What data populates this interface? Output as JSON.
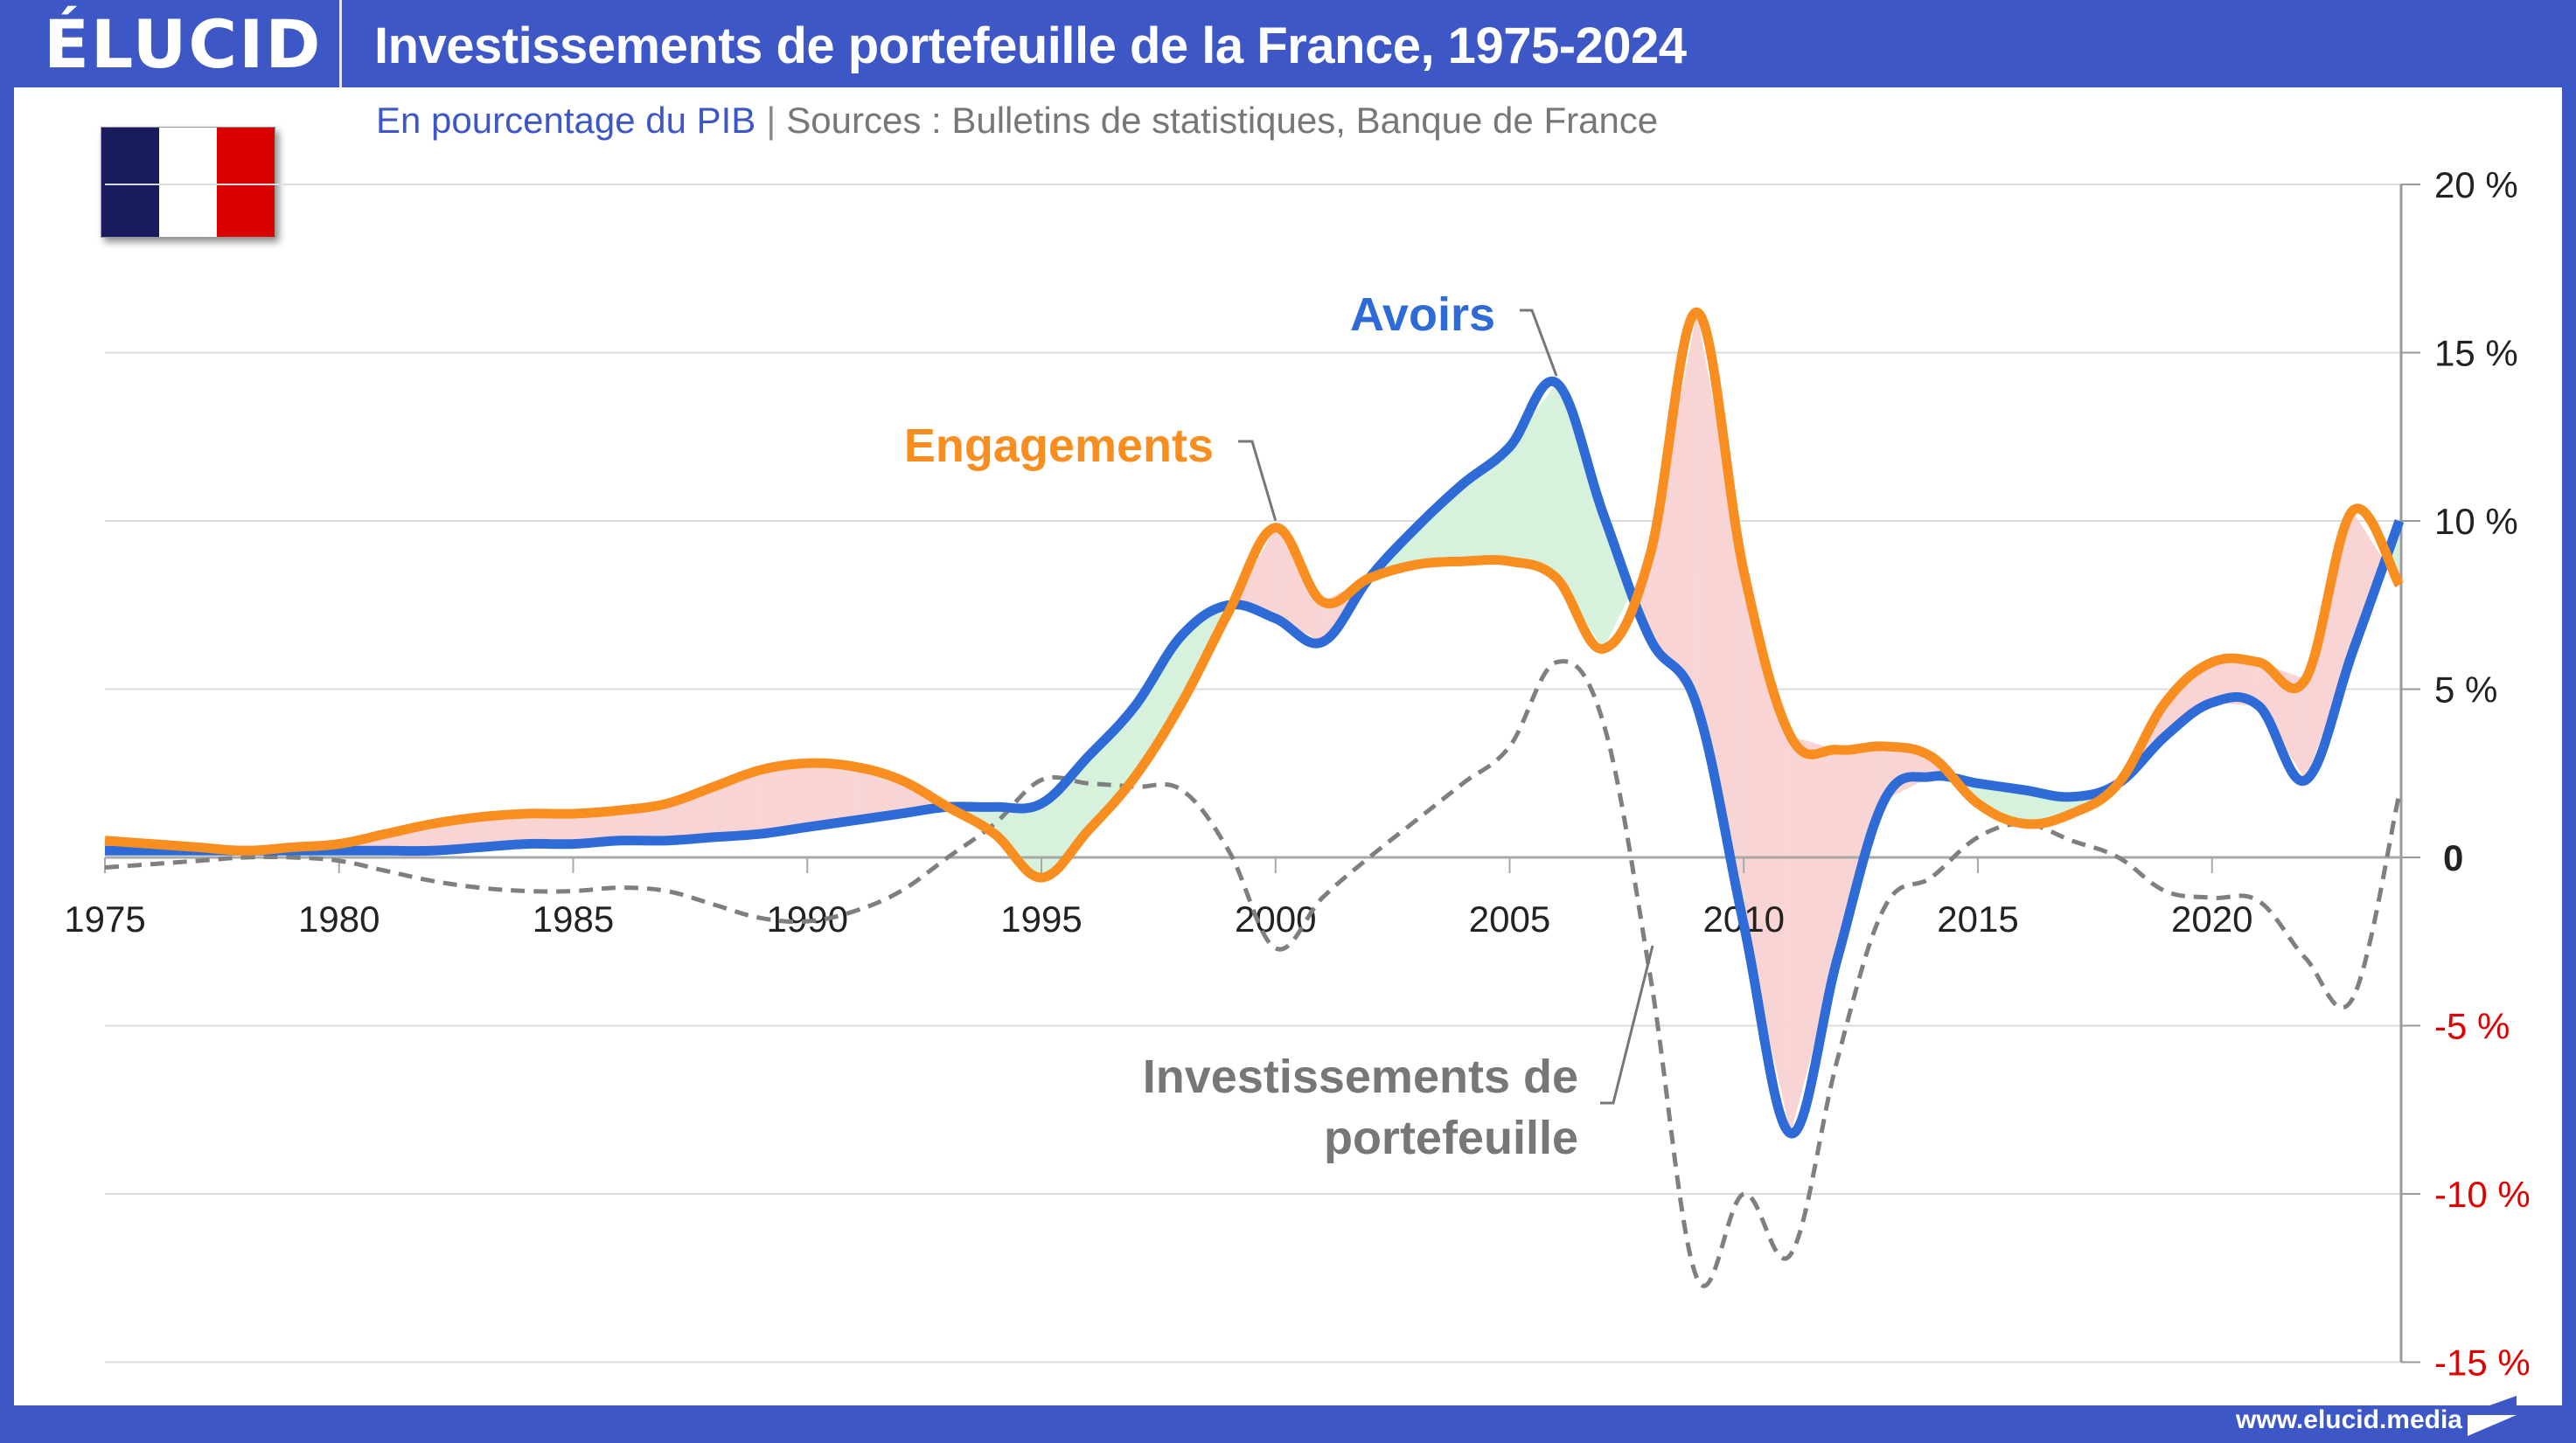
{
  "header": {
    "logo": "ÉLUCID",
    "title": "Investissements de portefeuille de la France, 1975-2024",
    "subtitle_unit": "En pourcentage du PIB",
    "subtitle_separator": "|",
    "subtitle_source": "Sources : Bulletins de statistiques, Banque de France"
  },
  "flag": "France",
  "footer": {
    "url": "www.elucid.media"
  },
  "colors": {
    "brand": "#3e57c6",
    "avoirs": "#2e6bd6",
    "engagements": "#f98e20",
    "net": "#7f7f7f",
    "fill_positive": "#d6f2dc",
    "fill_negative": "#f8d4d4",
    "negative_tick": "#e00000"
  },
  "chart_data": {
    "type": "line",
    "title": "Investissements de portefeuille de la France, 1975-2024",
    "subtitle": "En pourcentage du PIB",
    "xlabel": "",
    "ylabel": "",
    "x_range": [
      1975,
      2024
    ],
    "ylim": [
      -15,
      20
    ],
    "grid": true,
    "y_axis_side": "right",
    "x_ticks": [
      "1975",
      "1980",
      "1985",
      "1990",
      "1995",
      "2000",
      "2005",
      "2010",
      "2015",
      "2020"
    ],
    "x_tick_values": [
      1975,
      1980,
      1985,
      1990,
      1995,
      2000,
      2005,
      2010,
      2015,
      2020
    ],
    "y_ticks": [
      {
        "value": 20,
        "label": "20 %"
      },
      {
        "value": 15,
        "label": "15 %"
      },
      {
        "value": 10,
        "label": "10 %"
      },
      {
        "value": 5,
        "label": "5 %"
      },
      {
        "value": 0,
        "label": "0"
      },
      {
        "value": -5,
        "label": "-5 %"
      },
      {
        "value": -10,
        "label": "-10 %"
      },
      {
        "value": -15,
        "label": "-15 %"
      }
    ],
    "x": [
      1975,
      1976,
      1977,
      1978,
      1979,
      1980,
      1981,
      1982,
      1983,
      1984,
      1985,
      1986,
      1987,
      1988,
      1989,
      1990,
      1991,
      1992,
      1993,
      1994,
      1995,
      1996,
      1997,
      1998,
      1999,
      2000,
      2001,
      2002,
      2003,
      2004,
      2005,
      2006,
      2007,
      2008,
      2009,
      2010,
      2011,
      2012,
      2013,
      2014,
      2015,
      2016,
      2017,
      2018,
      2019,
      2020,
      2021,
      2022,
      2023,
      2024
    ],
    "series": [
      {
        "name": "Avoirs",
        "label": "Avoirs",
        "style": "solid",
        "values": [
          0.2,
          0.2,
          0.2,
          0.2,
          0.2,
          0.2,
          0.2,
          0.2,
          0.3,
          0.4,
          0.4,
          0.5,
          0.5,
          0.6,
          0.7,
          0.9,
          1.1,
          1.3,
          1.5,
          1.5,
          1.6,
          3.0,
          4.5,
          6.6,
          7.5,
          7.1,
          6.4,
          8.3,
          9.8,
          11.1,
          12.2,
          14.1,
          10.2,
          6.5,
          4.5,
          -2.0,
          -8.2,
          -3.0,
          1.7,
          2.4,
          2.2,
          2.0,
          1.8,
          2.2,
          3.6,
          4.6,
          4.5,
          2.3,
          6.1,
          10.0
        ]
      },
      {
        "name": "Engagements",
        "label": "Engagements",
        "style": "solid",
        "values": [
          0.5,
          0.4,
          0.3,
          0.2,
          0.3,
          0.4,
          0.7,
          1.0,
          1.2,
          1.3,
          1.3,
          1.4,
          1.6,
          2.1,
          2.6,
          2.8,
          2.7,
          2.3,
          1.5,
          0.7,
          -0.6,
          0.8,
          2.4,
          4.6,
          7.3,
          9.8,
          7.6,
          8.3,
          8.7,
          8.8,
          8.8,
          8.3,
          6.2,
          9.0,
          16.2,
          8.5,
          3.6,
          3.2,
          3.3,
          3.0,
          1.6,
          1.0,
          1.3,
          2.2,
          4.6,
          5.8,
          5.8,
          5.3,
          10.3,
          8.1
        ]
      },
      {
        "name": "Investissements de portefeuille",
        "label": "Investissements de portefeuille",
        "label_lines": [
          "Investissements de",
          "portefeuille"
        ],
        "style": "dashed",
        "values": [
          -0.3,
          -0.2,
          -0.1,
          0.0,
          0.0,
          -0.1,
          -0.4,
          -0.7,
          -0.9,
          -1.0,
          -1.0,
          -0.9,
          -1.0,
          -1.4,
          -1.8,
          -1.9,
          -1.6,
          -1.0,
          0.0,
          1.0,
          2.3,
          2.2,
          2.1,
          2.0,
          0.2,
          -2.7,
          -1.2,
          0.0,
          1.1,
          2.2,
          3.3,
          5.8,
          4.0,
          -3.5,
          -12.5,
          -10.0,
          -11.8,
          -6.0,
          -1.5,
          -0.6,
          0.6,
          1.0,
          0.5,
          0.0,
          -1.0,
          -1.2,
          -1.3,
          -3.0,
          -4.2,
          1.9
        ]
      }
    ],
    "fill_between": {
      "series": [
        "Avoirs",
        "Engagements"
      ],
      "avoirs_above_color": "green",
      "engagements_above_color": "red"
    },
    "legend": "inline-annotations"
  }
}
